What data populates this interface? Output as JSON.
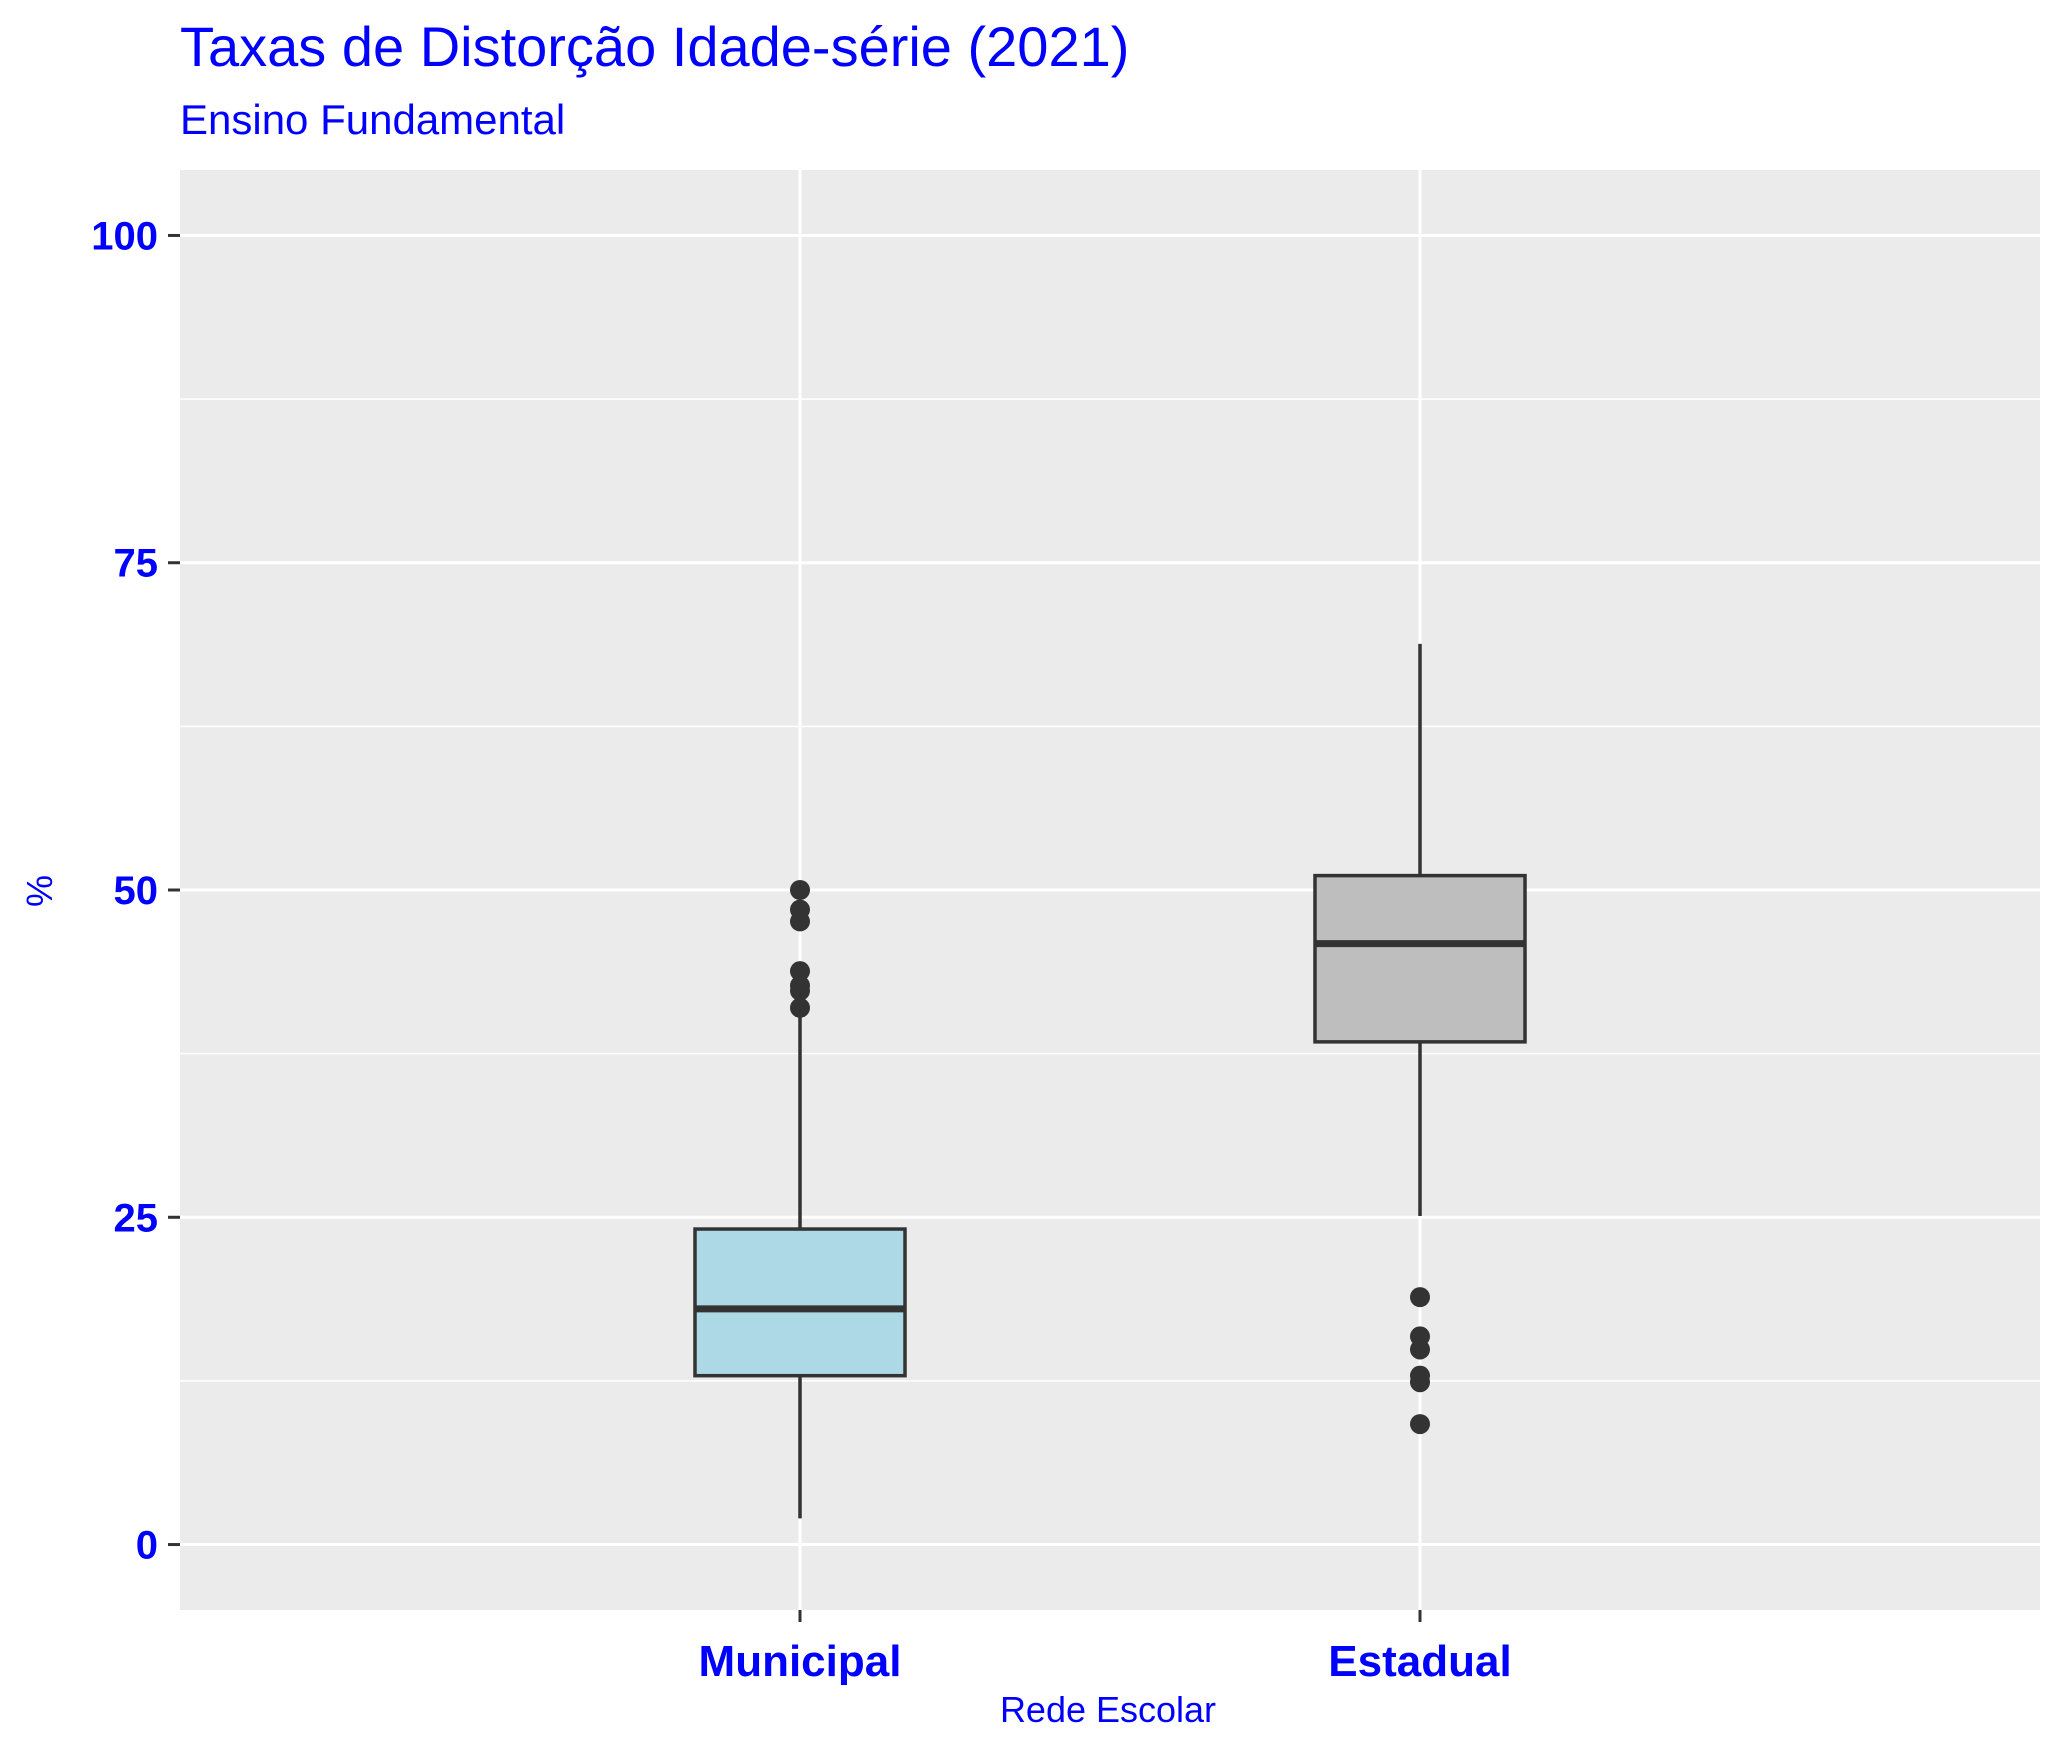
{
  "chart_data": {
    "type": "boxplot",
    "title": "Taxas de Distorção Idade-série (2021)",
    "subtitle": "Ensino Fundamental",
    "xlabel": "Rede Escolar",
    "ylabel": "%",
    "ylim": [
      -5,
      105
    ],
    "yticks": [
      0,
      25,
      50,
      75,
      100
    ],
    "grid": true,
    "categories": [
      "Municipal",
      "Estadual"
    ],
    "boxes": [
      {
        "category": "Municipal",
        "min": 2.0,
        "q1": 12.9,
        "median": 18.0,
        "q3": 24.1,
        "max": 41.0,
        "outliers": [
          41.0,
          42.3,
          42.7,
          43.8,
          47.6,
          48.5,
          50.0
        ],
        "fill": "#add8e6"
      },
      {
        "category": "Estadual",
        "min": 25.1,
        "q1": 38.4,
        "median": 45.9,
        "q3": 51.1,
        "max": 68.8,
        "outliers": [
          9.2,
          12.4,
          12.9,
          14.9,
          15.9,
          18.9
        ],
        "fill": "#bebebe"
      }
    ],
    "colors": {
      "panel": "#ebebeb",
      "grid": "#ffffff",
      "line": "#333333",
      "text": "#0000ff"
    }
  }
}
